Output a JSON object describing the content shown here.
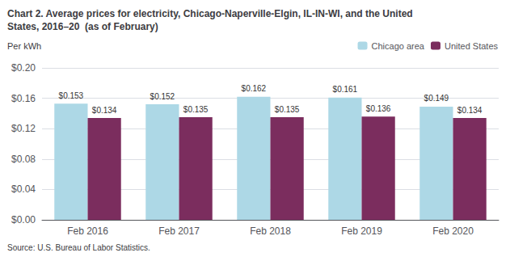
{
  "chart_data": {
    "type": "bar",
    "title": "Chart 2. Average prices for electricity, Chicago-Naperville-Elgin, IL-IN-WI, and the United\nStates, 2016–20  (as of February)",
    "y_label": "Per kWh",
    "source": "Source: U.S. Bureau of Labor Statistics.",
    "categories": [
      "Feb 2016",
      "Feb 2017",
      "Feb 2018",
      "Feb 2019",
      "Feb 2020"
    ],
    "series": [
      {
        "name": "Chicago area",
        "color": "#ADD8E6",
        "values": [
          0.153,
          0.152,
          0.162,
          0.161,
          0.149
        ],
        "value_labels": [
          "$0.153",
          "$0.152",
          "$0.162",
          "$0.161",
          "$0.149"
        ]
      },
      {
        "name": "United States",
        "color": "#7B2D5E",
        "values": [
          0.134,
          0.135,
          0.135,
          0.136,
          0.134
        ],
        "value_labels": [
          "$0.134",
          "$0.135",
          "$0.135",
          "$0.136",
          "$0.134"
        ]
      }
    ],
    "ylim": [
      0,
      0.2
    ],
    "yticks": [
      {
        "value": 0,
        "label": "$0.00"
      },
      {
        "value": 0.04,
        "label": "$0.04"
      },
      {
        "value": 0.08,
        "label": "$0.08"
      },
      {
        "value": 0.12,
        "label": "$0.12"
      },
      {
        "value": 0.16,
        "label": "$0.16"
      },
      {
        "value": 0.2,
        "label": "$0.20"
      }
    ],
    "grid": true,
    "legend": "top-right",
    "data_labels": true
  }
}
